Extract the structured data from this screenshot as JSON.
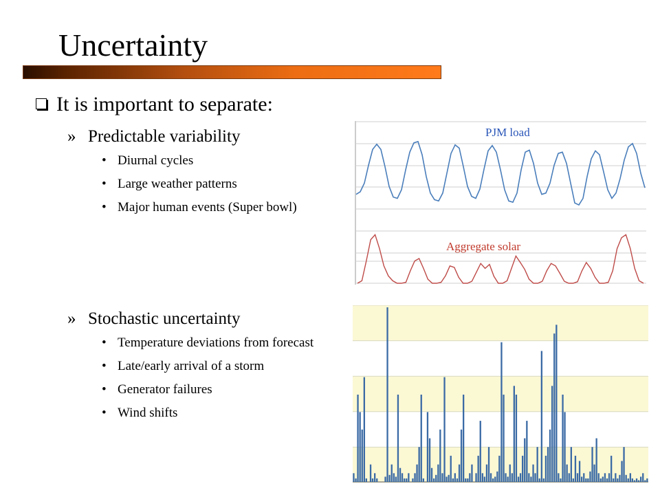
{
  "slide": {
    "title": "Uncertainty",
    "main_bullet": "It is important to separate:",
    "sections": [
      {
        "heading": "Predictable variability",
        "items": [
          "Diurnal cycles",
          "Large weather patterns",
          "Major human events (Super bowl)"
        ]
      },
      {
        "heading": "Stochastic uncertainty",
        "items": [
          "Temperature deviations from forecast",
          "Late/early arrival of a storm",
          "Generator failures",
          "Wind shifts"
        ]
      }
    ],
    "bullet_marker": "»",
    "item_marker": "•"
  },
  "chart_data": [
    {
      "type": "line",
      "series": [
        {
          "name": "PJM load",
          "color": "#4a7ebb",
          "values": [
            0.18,
            0.22,
            0.35,
            0.62,
            0.86,
            0.94,
            0.86,
            0.6,
            0.3,
            0.14,
            0.12,
            0.25,
            0.55,
            0.82,
            0.96,
            0.98,
            0.78,
            0.45,
            0.2,
            0.1,
            0.08,
            0.2,
            0.5,
            0.8,
            0.93,
            0.88,
            0.6,
            0.3,
            0.15,
            0.12,
            0.26,
            0.56,
            0.84,
            0.92,
            0.82,
            0.55,
            0.25,
            0.08,
            0.06,
            0.2,
            0.55,
            0.82,
            0.85,
            0.65,
            0.35,
            0.18,
            0.2,
            0.35,
            0.62,
            0.8,
            0.82,
            0.65,
            0.35,
            0.05,
            0.02,
            0.12,
            0.45,
            0.72,
            0.84,
            0.78,
            0.52,
            0.25,
            0.12,
            0.2,
            0.42,
            0.7,
            0.9,
            0.95,
            0.8,
            0.5,
            0.28
          ]
        },
        {
          "name": "Aggregate solar",
          "color": "#be4b48",
          "values": [
            0,
            0.05,
            0.45,
            0.88,
            0.98,
            0.7,
            0.35,
            0.15,
            0.05,
            0,
            0,
            0.02,
            0.25,
            0.45,
            0.5,
            0.3,
            0.08,
            0,
            0,
            0.02,
            0.15,
            0.35,
            0.32,
            0.12,
            0,
            0,
            0.04,
            0.22,
            0.4,
            0.3,
            0.38,
            0.14,
            0,
            0,
            0.05,
            0.3,
            0.55,
            0.42,
            0.28,
            0.08,
            0,
            0,
            0.04,
            0.25,
            0.4,
            0.35,
            0.2,
            0.04,
            0,
            0,
            0.03,
            0.25,
            0.42,
            0.3,
            0.12,
            0,
            0,
            0.02,
            0.25,
            0.7,
            0.92,
            0.98,
            0.7,
            0.3,
            0.05,
            0
          ]
        }
      ],
      "grid": true
    },
    {
      "type": "bar",
      "color": "#3a6aa5",
      "background": [
        "#fbf8d4",
        "#ffffff"
      ],
      "values": [
        0.05,
        0.02,
        0.5,
        0.4,
        0.3,
        0.6,
        0.02,
        0,
        0.1,
        0.02,
        0.05,
        0.02,
        0,
        0,
        0,
        0.03,
        1.0,
        0.04,
        0.1,
        0.05,
        0.03,
        0.5,
        0.08,
        0.05,
        0.02,
        0.02,
        0.05,
        0,
        0.02,
        0.05,
        0.1,
        0.2,
        0.5,
        0.02,
        0,
        0.4,
        0.25,
        0.08,
        0.02,
        0.04,
        0.1,
        0.3,
        0.05,
        0.6,
        0.03,
        0.04,
        0.15,
        0.02,
        0.05,
        0.02,
        0.1,
        0.3,
        0.5,
        0.02,
        0.02,
        0.05,
        0.1,
        0,
        0.05,
        0.15,
        0.35,
        0.05,
        0.03,
        0.1,
        0.2,
        0.05,
        0.02,
        0.03,
        0.06,
        0.15,
        0.8,
        0.5,
        0.05,
        0.03,
        0.1,
        0.05,
        0.55,
        0.5,
        0.03,
        0.05,
        0.15,
        0.25,
        0.35,
        0.05,
        0.03,
        0.1,
        0.05,
        0.2,
        0.02,
        0.75,
        0.02,
        0.15,
        0.2,
        0.3,
        0.55,
        0.85,
        0.9,
        0.05,
        0.02,
        0.5,
        0.4,
        0.1,
        0.05,
        0.2,
        0.02,
        0.15,
        0.05,
        0.12,
        0.03,
        0.05,
        0.02,
        0.02,
        0.06,
        0.2,
        0.1,
        0.25,
        0.05,
        0.02,
        0.03,
        0.05,
        0.02,
        0.05,
        0.15,
        0.02,
        0.05,
        0.02,
        0.04,
        0.12,
        0.2,
        0.04,
        0.02,
        0.05,
        0.02,
        0.01,
        0.02,
        0.01,
        0.03,
        0.05,
        0.01,
        0.02
      ],
      "grid": true
    }
  ]
}
